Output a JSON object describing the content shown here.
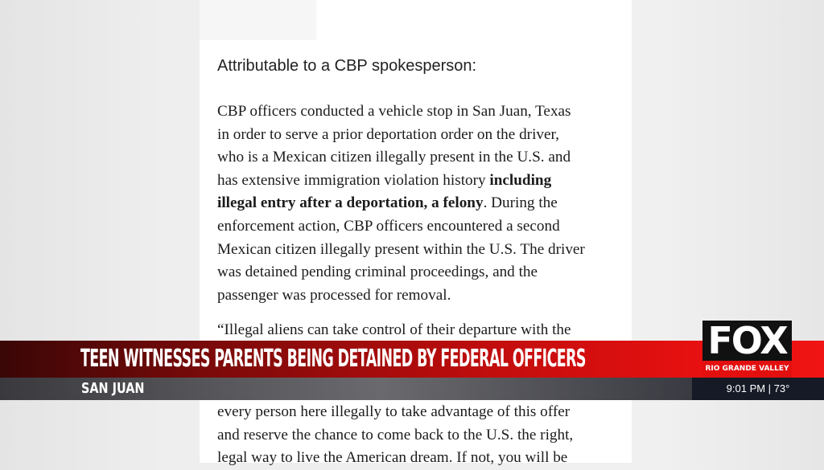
{
  "document": {
    "heading": "Attributable to a CBP spokesperson:",
    "paragraph1": [
      "CBP officers conducted a vehicle stop in San Juan, Texas",
      "in order to serve a prior deportation order on the driver,",
      "who is a Mexican citizen illegally present in the U.S. and",
      "has extensive immigration violation history ",
      "including",
      "illegal entry after a deportation, a felony",
      ". During the",
      "enforcement action, CBP officers encountered a second",
      "Mexican citizen illegally present within the U.S. The driver",
      "was detained pending criminal proceedings, and the",
      "passenger was processed for removal."
    ],
    "paragraph2_partial": "“Illegal aliens can take control of their departure with the",
    "paragraph3": [
      "every person here illegally to take advantage of this offer",
      "and reserve the chance to come back to the U.S. the right,",
      "legal way to live the American dream. If not, you will be"
    ]
  },
  "lower_third": {
    "headline": "TEEN WITNESSES PARENTS BEING DETAINED BY FEDERAL OFFICERS",
    "location": "SAN JUAN",
    "time_weather": "9:01 PM | 73°",
    "accent_color": "#e30f0f"
  },
  "logo": {
    "brand": "FOX",
    "station": "RIO GRANDE VALLEY"
  }
}
